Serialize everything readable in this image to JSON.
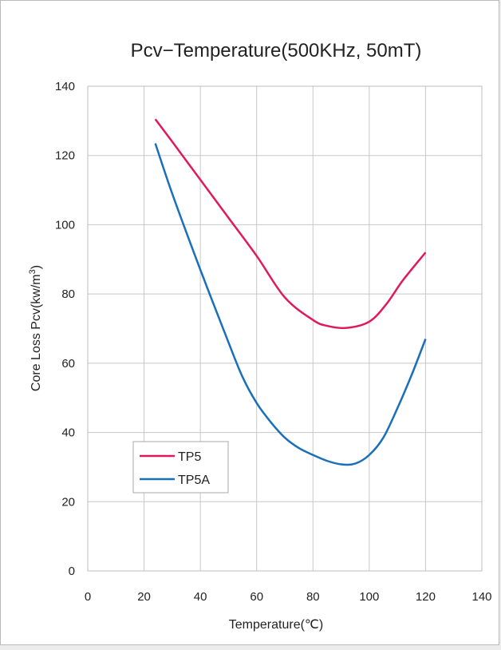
{
  "chart_data": {
    "type": "line",
    "title": "Pcv−Temperature(500KHz, 50mT)",
    "xlabel": "Temperature(℃)",
    "ylabel": "Core Loss Pcv(kw/m",
    "ylabel_sup": "3",
    "ylabel_end": ")",
    "xlim": [
      0,
      140
    ],
    "ylim": [
      0,
      140
    ],
    "x_ticks": [
      0,
      20,
      40,
      60,
      80,
      100,
      120,
      140
    ],
    "y_ticks": [
      0,
      20,
      40,
      60,
      80,
      100,
      120,
      140
    ],
    "grid": true,
    "legend_position": "bottom-left",
    "series": [
      {
        "name": "TP5",
        "color": "#e0195e",
        "x": [
          24,
          30,
          40,
          50,
          60,
          70,
          80,
          85,
          92,
          100,
          106,
          112,
          120
        ],
        "y": [
          130.5,
          124,
          113,
          102,
          91,
          79,
          72.5,
          70.8,
          70.2,
          72,
          77,
          84,
          92
        ]
      },
      {
        "name": "TP5A",
        "color": "#1a6fba",
        "x": [
          24,
          30,
          40,
          50,
          55,
          60,
          65,
          70,
          75,
          80,
          85,
          90,
          95,
          100,
          105,
          110,
          115,
          120
        ],
        "y": [
          123.5,
          109,
          87,
          66,
          56,
          48.5,
          43,
          38.5,
          35.5,
          33.5,
          31.8,
          30.8,
          31,
          33.5,
          38.5,
          47,
          56.5,
          67
        ]
      }
    ]
  }
}
